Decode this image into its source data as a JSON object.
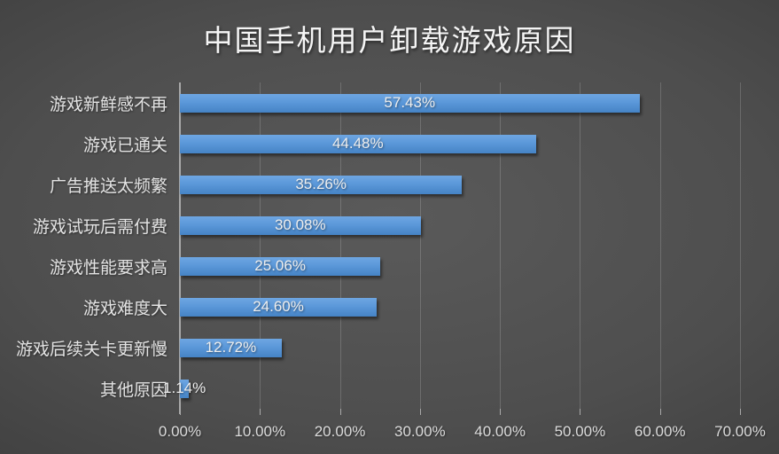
{
  "title": "中国手机用户卸载游戏原因",
  "chart_data": {
    "type": "bar",
    "orientation": "horizontal",
    "title": "中国手机用户卸载游戏原因",
    "categories": [
      "游戏新鲜感不再",
      "游戏已通关",
      "广告推送太频繁",
      "游戏试玩后需付费",
      "游戏性能要求高",
      "游戏难度大",
      "游戏后续关卡更新慢",
      "其他原因"
    ],
    "values": [
      57.43,
      44.48,
      35.26,
      30.08,
      25.06,
      24.6,
      12.72,
      1.14
    ],
    "data_labels": [
      "57.43%",
      "44.48%",
      "35.26%",
      "30.08%",
      "25.06%",
      "24.60%",
      "12.72%",
      "1.14%"
    ],
    "x_tick_labels": [
      "0.00%",
      "10.00%",
      "20.00%",
      "30.00%",
      "40.00%",
      "50.00%",
      "60.00%",
      "70.00%"
    ],
    "xlim": [
      0,
      70
    ],
    "x_tick_step": 10,
    "grid": true,
    "legend": false,
    "colors": {
      "bar": "#5B9BD5",
      "bar_gradient_top": "#6EA6E2",
      "bar_gradient_bottom": "#4583C5",
      "axis_line": "#A9A9A9",
      "gridline": "#6E6E6E",
      "label_text": "#EEEEEE",
      "category_text": "#E3E3E3",
      "title_text": "#F5F5F5",
      "background_center": "#5A5A5A",
      "background_edge": "#262626"
    }
  }
}
